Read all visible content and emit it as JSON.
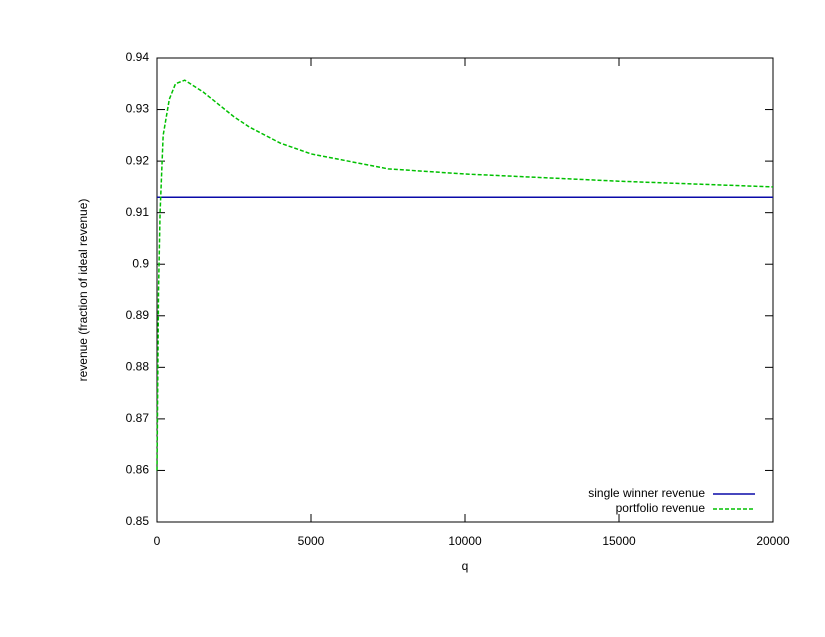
{
  "chart_data": {
    "type": "line",
    "xlabel": "q",
    "ylabel": "revenue (fraction of ideal revenue)",
    "x": [
      0,
      50,
      100,
      200,
      400,
      600,
      900,
      1500,
      2000,
      2500,
      3000,
      4000,
      5000,
      7500,
      10000,
      15000,
      20000
    ],
    "series": [
      {
        "name": "single winner revenue",
        "color": "#0a0aa8",
        "dash": false,
        "values": [
          0.913,
          0.913,
          0.913,
          0.913,
          0.913,
          0.913,
          0.913,
          0.913,
          0.913,
          0.913,
          0.913,
          0.913,
          0.913,
          0.913,
          0.913,
          0.913,
          0.913
        ]
      },
      {
        "name": "portfolio revenue",
        "color": "#00c000",
        "dash": true,
        "values": [
          0.86,
          0.895,
          0.91,
          0.925,
          0.932,
          0.935,
          0.9357,
          0.9334,
          0.931,
          0.9286,
          0.9266,
          0.9235,
          0.9214,
          0.9185,
          0.9175,
          0.9161,
          0.915
        ]
      }
    ],
    "xlim": [
      0,
      20000
    ],
    "xticks": [
      0,
      5000,
      10000,
      15000,
      20000
    ],
    "ylim": [
      0.85,
      0.94
    ],
    "yticks": [
      0.85,
      0.86,
      0.87,
      0.88,
      0.89,
      0.9,
      0.91,
      0.92,
      0.93,
      0.94
    ],
    "legend": "lower right"
  }
}
